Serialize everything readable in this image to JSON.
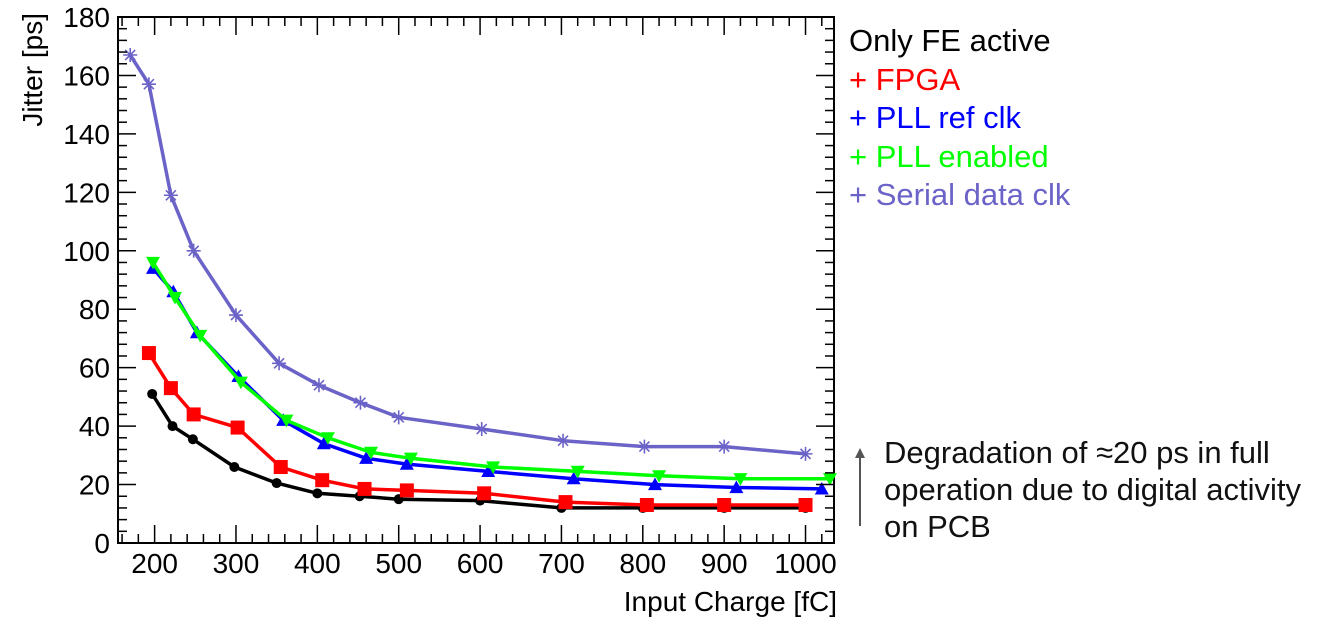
{
  "chart_data": {
    "type": "line",
    "xlabel": "Input Charge [fC]",
    "ylabel": "Jitter [ps]",
    "xlim": [
      155,
      1035
    ],
    "ylim": [
      0,
      180
    ],
    "xticks": [
      200,
      300,
      400,
      500,
      600,
      700,
      800,
      900,
      1000
    ],
    "yticks": [
      0,
      20,
      40,
      60,
      80,
      100,
      120,
      140,
      160,
      180
    ],
    "grid": false,
    "legend_placement": "right",
    "series": [
      {
        "name": "Only FE active",
        "color": "#000000",
        "marker": "circle",
        "x": [
          197,
          222,
          247,
          298,
          350,
          400,
          452,
          500,
          600,
          700,
          800,
          900,
          1000
        ],
        "y": [
          51,
          40,
          35.5,
          26,
          20.5,
          17,
          16,
          15,
          14.5,
          12,
          12,
          12,
          12
        ]
      },
      {
        "name": "+ FPGA",
        "color": "#ff0000",
        "marker": "square",
        "x": [
          193,
          220,
          248,
          302,
          355,
          406,
          458,
          510,
          605,
          705,
          805,
          900,
          1000
        ],
        "y": [
          65,
          53,
          44,
          39.5,
          26,
          21.5,
          18.5,
          18,
          17,
          14,
          13,
          13,
          13
        ]
      },
      {
        "name": "+ PLL ref clk",
        "color": "#0000ff",
        "marker": "triangle-up",
        "x": [
          198,
          223,
          252,
          303,
          358,
          408,
          460,
          510,
          610,
          715,
          815,
          915,
          1020
        ],
        "y": [
          94,
          86,
          72,
          57,
          42,
          34,
          29,
          27,
          24.5,
          22,
          20,
          19,
          18.5
        ]
      },
      {
        "name": "+ PLL enabled",
        "color": "#00ff00",
        "marker": "triangle-down",
        "x": [
          198,
          225,
          256,
          306,
          362,
          413,
          466,
          515,
          616,
          720,
          820,
          920,
          1030
        ],
        "y": [
          96,
          84,
          71,
          55,
          42,
          36,
          31,
          29,
          26,
          24.5,
          23,
          22,
          22
        ]
      },
      {
        "name": "+ Serial data clk",
        "color": "#6b63c7",
        "marker": "star",
        "x": [
          170,
          193,
          220,
          248,
          300,
          353,
          402,
          453,
          500,
          602,
          702,
          802,
          900,
          1000
        ],
        "y": [
          167,
          157,
          119,
          100,
          78,
          61.5,
          54,
          48,
          43,
          39,
          35,
          33,
          33,
          30.5
        ]
      }
    ],
    "annotation": "Degradation of ≈20 ps in full operation due to digital activity on PCB"
  }
}
